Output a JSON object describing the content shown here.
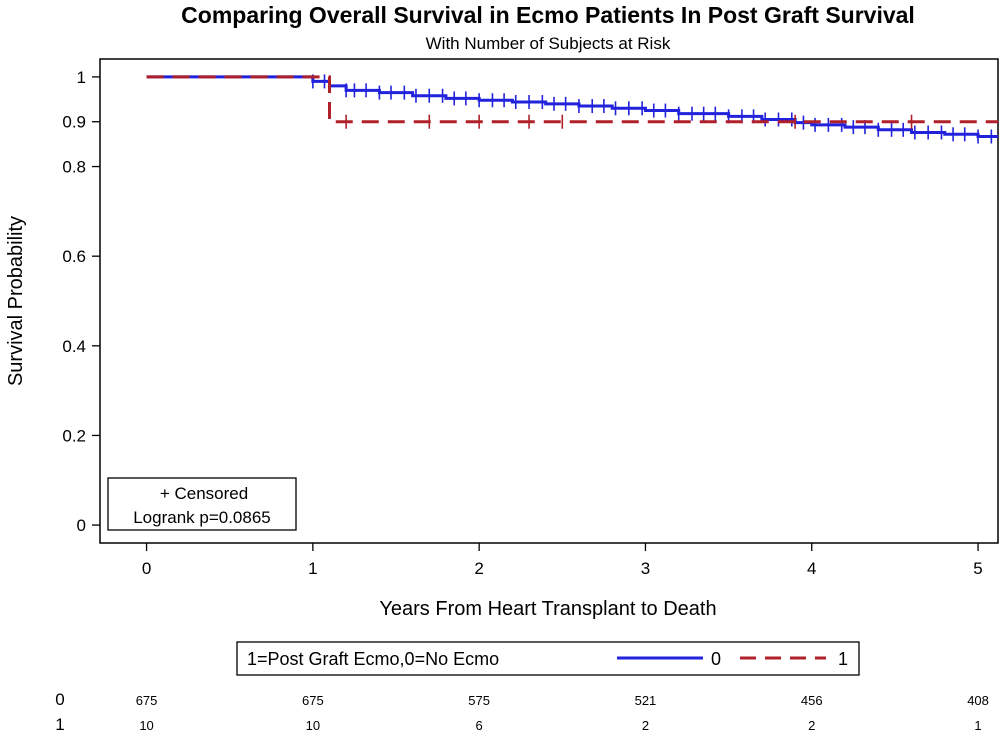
{
  "chart_data": {
    "type": "line",
    "title": "Comparing Overall Survival in Ecmo Patients In Post Graft Survival",
    "subtitle": "With Number of Subjects at Risk",
    "xlabel": "Years From Heart Transplant to Death",
    "ylabel": "Survival Probability",
    "xlim": [
      -0.28,
      5.12
    ],
    "ylim": [
      -0.04,
      1.04
    ],
    "x_ticks": [
      0,
      1,
      2,
      3,
      4,
      5
    ],
    "x_tick_labels": [
      "0",
      "1",
      "2",
      "3",
      "4",
      "5"
    ],
    "y_ticks": [
      0,
      0.2,
      0.4,
      0.6,
      0.8,
      0.9,
      1
    ],
    "y_tick_labels": [
      "0",
      "0.2",
      "0.4",
      "0.6",
      "0.8",
      "0.9",
      "1"
    ],
    "inset_box": {
      "censored_label": "+ Censored",
      "logrank_label": "Logrank p=0.0865"
    },
    "legend": {
      "title": "1=Post Graft Ecmo,0=No Ecmo",
      "entries": [
        {
          "name": "0",
          "color": "#2222dd",
          "style": "solid"
        },
        {
          "name": "1",
          "color": "#b0202a",
          "style": "dashed"
        }
      ]
    },
    "series": [
      {
        "name": "0",
        "color": "#2222dd",
        "dash": "solid",
        "steps": [
          [
            0,
            1.0
          ],
          [
            1.0,
            0.99
          ],
          [
            1.1,
            0.98
          ],
          [
            1.2,
            0.97
          ],
          [
            1.4,
            0.965
          ],
          [
            1.6,
            0.958
          ],
          [
            1.8,
            0.952
          ],
          [
            2.0,
            0.948
          ],
          [
            2.2,
            0.944
          ],
          [
            2.4,
            0.94
          ],
          [
            2.6,
            0.935
          ],
          [
            2.8,
            0.93
          ],
          [
            3.0,
            0.925
          ],
          [
            3.2,
            0.918
          ],
          [
            3.5,
            0.912
          ],
          [
            3.7,
            0.905
          ],
          [
            3.9,
            0.898
          ],
          [
            4.0,
            0.893
          ],
          [
            4.2,
            0.888
          ],
          [
            4.4,
            0.882
          ],
          [
            4.6,
            0.876
          ],
          [
            4.8,
            0.872
          ],
          [
            5.0,
            0.867
          ]
        ],
        "x_end": 5.12,
        "censored_x": [
          1.0,
          1.07,
          1.2,
          1.25,
          1.32,
          1.4,
          1.47,
          1.55,
          1.62,
          1.7,
          1.78,
          1.85,
          1.92,
          2.0,
          2.08,
          2.15,
          2.22,
          2.3,
          2.38,
          2.45,
          2.52,
          2.6,
          2.68,
          2.75,
          2.82,
          2.9,
          2.98,
          3.05,
          3.12,
          3.2,
          3.28,
          3.35,
          3.42,
          3.5,
          3.58,
          3.65,
          3.72,
          3.8,
          3.88,
          3.95,
          4.02,
          4.1,
          4.18,
          4.25,
          4.32,
          4.4,
          4.48,
          4.55,
          4.62,
          4.7,
          4.78,
          4.85,
          4.92,
          5.0,
          5.08
        ]
      },
      {
        "name": "1",
        "color": "#b0202a",
        "dash": "dashed",
        "steps": [
          [
            0,
            1.0
          ],
          [
            1.1,
            0.9
          ]
        ],
        "x_end": 5.12,
        "censored_x": [
          1.2,
          1.7,
          2.0,
          2.3,
          2.5,
          3.9,
          4.6
        ]
      }
    ],
    "at_risk": {
      "times": [
        0,
        1,
        2,
        3,
        4,
        5
      ],
      "rows": [
        {
          "group": "0",
          "counts": [
            "675",
            "675",
            "575",
            "521",
            "456",
            "408"
          ]
        },
        {
          "group": "1",
          "counts": [
            "10",
            "10",
            "6",
            "2",
            "2",
            "1"
          ]
        }
      ]
    }
  }
}
